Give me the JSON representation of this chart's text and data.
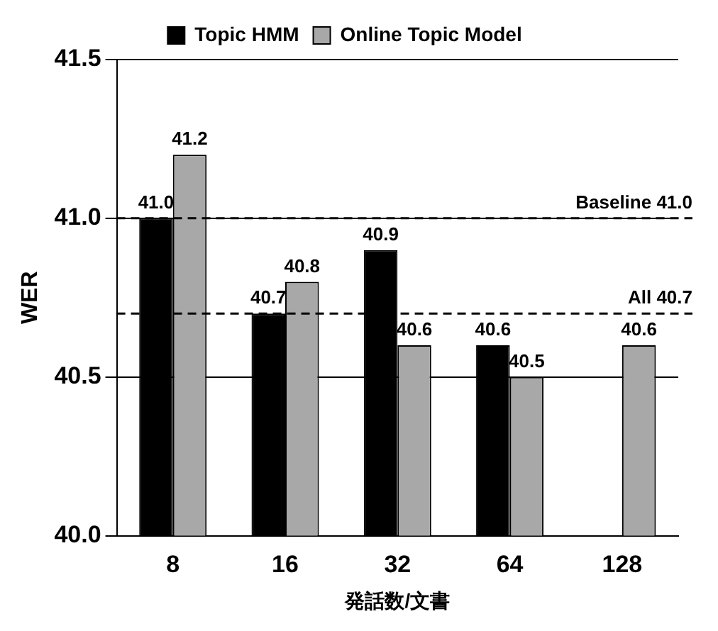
{
  "chart_data": {
    "type": "bar",
    "xlabel": "発話数/文書",
    "ylabel": "WER",
    "categories": [
      "8",
      "16",
      "32",
      "64",
      "128"
    ],
    "series": [
      {
        "name": "Topic HMM",
        "color": "#000000",
        "values": [
          41.0,
          40.7,
          40.9,
          40.6,
          null
        ],
        "value_labels": [
          "41.0",
          "40.7",
          "40.9",
          "40.6",
          null
        ]
      },
      {
        "name": "Online Topic Model",
        "color": "#a8a8a8",
        "values": [
          41.2,
          40.8,
          40.6,
          40.5,
          40.6
        ],
        "value_labels": [
          "41.2",
          "40.8",
          "40.6",
          "40.5",
          "40.6"
        ]
      }
    ],
    "ylim": [
      40.0,
      41.5
    ],
    "yticks": [
      {
        "value": 40,
        "label": "40.0"
      },
      40.5,
      {
        "value": 41,
        "label": "41.0"
      },
      41.5
    ],
    "ref_lines": [
      {
        "axis": "y",
        "value": 41.0,
        "label": "Baseline 41.0",
        "line_style": "dashed"
      },
      {
        "axis": "y",
        "value": 40.7,
        "label": "All 40.7",
        "line_style": "dashed"
      }
    ],
    "grid": "y",
    "legend": "top"
  }
}
